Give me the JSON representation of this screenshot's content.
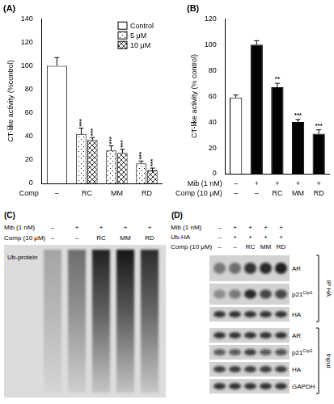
{
  "chart_data": [
    {
      "type": "bar",
      "title": "(A)",
      "y_label": "CT-like activity (%control)",
      "categories": [
        "–",
        "RC",
        "MM",
        "RD"
      ],
      "x_label": "Comp",
      "series": [
        {
          "name": "Control",
          "color": "#ffffff",
          "values": [
            100,
            null,
            null,
            null
          ],
          "errors": [
            7,
            null,
            null,
            null
          ],
          "annotations": [
            null,
            null,
            null,
            null
          ]
        },
        {
          "name": "5 μM",
          "color": "#ffffff",
          "values": [
            null,
            42,
            28,
            17
          ],
          "errors": [
            null,
            5,
            4,
            2
          ],
          "annotations": [
            null,
            "***",
            "***",
            "***"
          ]
        },
        {
          "name": "10 μM",
          "color": "#ffffff",
          "values": [
            null,
            37,
            26,
            11
          ],
          "errors": [
            null,
            2,
            3,
            2
          ],
          "annotations": [
            null,
            "***",
            "***",
            "***"
          ]
        }
      ],
      "ylim": [
        0,
        140
      ],
      "yticks": [
        0,
        20,
        40,
        60,
        80,
        100,
        120,
        140
      ],
      "grid": false,
      "legend": "upper right"
    },
    {
      "type": "bar",
      "title": "(B)",
      "y_label": "CT-like activity (% control)",
      "categories": [
        "–",
        "–",
        "RC",
        "MM",
        "RD"
      ],
      "x_label": "Comp (10 μM)",
      "extra_rows": [
        {
          "label": "Mib (1 nM)",
          "values": [
            "–",
            "+",
            "+",
            "+",
            "+"
          ]
        }
      ],
      "values": [
        59,
        100,
        67,
        40,
        31
      ],
      "errors": [
        2,
        3,
        3,
        2,
        3
      ],
      "annotations": [
        null,
        null,
        "**",
        "***",
        "***"
      ],
      "colors": [
        "#ffffff",
        "#000000",
        "#000000",
        "#000000",
        "#000000"
      ],
      "ylim": [
        0,
        120
      ],
      "yticks": [
        0,
        20,
        40,
        60,
        80,
        100,
        120
      ],
      "grid": false
    }
  ],
  "blots": [
    {
      "title": "(C)",
      "lane_rows": [
        {
          "label": "Mib (1 nM)",
          "values": [
            "–",
            "+",
            "+",
            "+",
            "+"
          ]
        },
        {
          "label": "Comp (10 μM)",
          "values": [
            "–",
            "–",
            "RC",
            "MM",
            "RD"
          ]
        }
      ],
      "blots": [
        {
          "label": "Ub-protein",
          "intensity": [
            0.25,
            0.5,
            0.85,
            0.9,
            0.8
          ]
        }
      ]
    },
    {
      "title": "(D)",
      "lane_rows": [
        {
          "label": "Mib (1 nM)",
          "values": [
            "–",
            "+",
            "+",
            "+",
            "+"
          ]
        },
        {
          "label": "Ub-HA",
          "values": [
            "–",
            "+",
            "+",
            "+",
            "+"
          ]
        },
        {
          "label": "Comp (10 μM)",
          "values": [
            "–",
            "–",
            "RC",
            "MM",
            "RD"
          ]
        }
      ],
      "groups": [
        {
          "label": "IP HA",
          "blots": [
            {
              "label": "AR",
              "intensity": [
                0.45,
                0.5,
                0.8,
                0.85,
                0.9
              ]
            },
            {
              "label": "p21",
              "sup": "Cip1",
              "intensity": [
                0.35,
                0.45,
                0.85,
                0.7,
                0.7
              ]
            },
            {
              "label": "HA",
              "intensity": [
                0.8,
                0.8,
                0.8,
                0.8,
                0.8
              ]
            }
          ]
        },
        {
          "label": "Input",
          "blots": [
            {
              "label": "AR",
              "intensity": [
                0.8,
                0.8,
                0.8,
                0.8,
                0.8
              ]
            },
            {
              "label": "p21",
              "sup": "Cip1",
              "intensity": [
                0.6,
                0.6,
                0.75,
                0.6,
                0.65
              ]
            },
            {
              "label": "HA",
              "intensity": [
                0.75,
                0.75,
                0.75,
                0.75,
                0.75
              ]
            },
            {
              "label": "GAPDH",
              "intensity": [
                0.8,
                0.8,
                0.8,
                0.8,
                0.8
              ]
            }
          ]
        }
      ]
    }
  ]
}
